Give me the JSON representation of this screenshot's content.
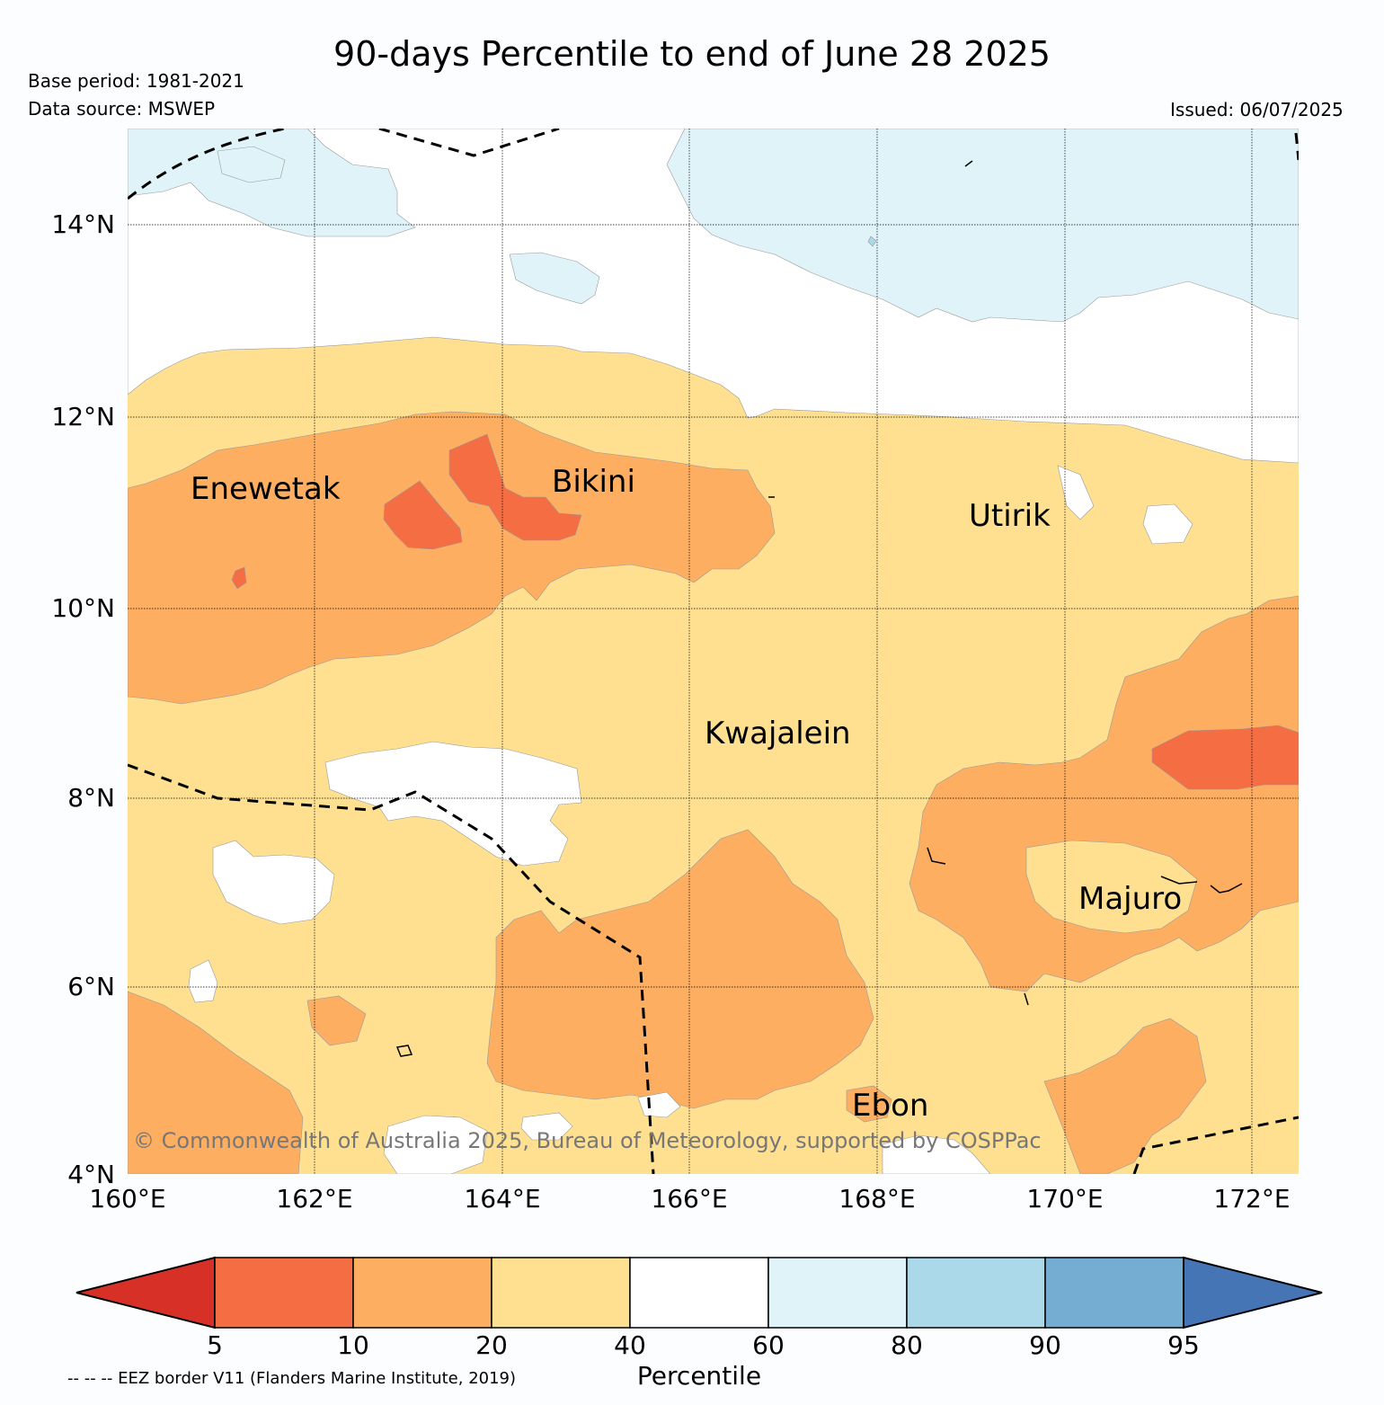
{
  "title": "90-days Percentile to end of June 28 2025",
  "base_period": "Base period: 1981-2021",
  "data_source": "Data source: MSWEP",
  "issued": "Issued: 06/07/2025",
  "map": {
    "lon_range": [
      160,
      172.5
    ],
    "lat_range": [
      4,
      15
    ],
    "lat_ticks": [
      "14°N",
      "12°N",
      "10°N",
      "8°N",
      "6°N",
      "4°N"
    ],
    "lon_ticks": [
      "160°E",
      "162°E",
      "164°E",
      "166°E",
      "168°E",
      "170°E",
      "172°E"
    ],
    "locations": [
      {
        "name": "Enewetak",
        "lon": 162.3,
        "lat": 11.5
      },
      {
        "name": "Bikini",
        "lon": 165.4,
        "lat": 11.6
      },
      {
        "name": "Utirik",
        "lon": 169.8,
        "lat": 11.2
      },
      {
        "name": "Kwajalein",
        "lon": 167.3,
        "lat": 8.7
      },
      {
        "name": "Majuro",
        "lon": 171.2,
        "lat": 7.1
      },
      {
        "name": "Ebon",
        "lon": 168.7,
        "lat": 4.6
      }
    ],
    "copyright": "© Commonwealth of Australia 2025, Bureau of Meteorology, supported by COSPPac",
    "fill_colors": {
      "below_5": "#d73027",
      "p5_10": "#f46d43",
      "p10_20": "#fdae61",
      "p20_40": "#fee090",
      "p40_60": "#ffffff",
      "p60_80": "#e0f3f8",
      "p80_90": "#abd9e9",
      "p90_95": "#74add1",
      "above_95": "#4575b4"
    }
  },
  "colorbar": {
    "ticks": [
      "5",
      "10",
      "20",
      "40",
      "60",
      "80",
      "90",
      "95"
    ],
    "label": "Percentile",
    "colors": [
      "#d73027",
      "#f46d43",
      "#fdae61",
      "#fee090",
      "#ffffff",
      "#e0f3f8",
      "#abd9e9",
      "#74add1",
      "#4575b4"
    ]
  },
  "eez_note": "-- -- -- EEZ border V11 (Flanders Marine Institute, 2019)"
}
